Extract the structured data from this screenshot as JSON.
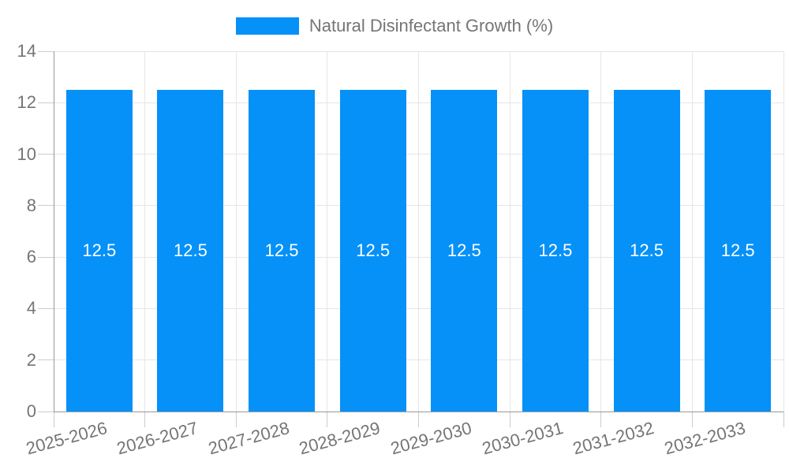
{
  "legend": {
    "label": "Natural Disinfectant Growth (%)"
  },
  "chart_data": {
    "type": "bar",
    "title": "",
    "xlabel": "",
    "ylabel": "",
    "categories": [
      "2025-2026",
      "2026-2027",
      "2027-2028",
      "2028-2029",
      "2029-2030",
      "2030-2031",
      "2031-2032",
      "2032-2033"
    ],
    "series": [
      {
        "name": "Natural Disinfectant Growth (%)",
        "values": [
          12.5,
          12.5,
          12.5,
          12.5,
          12.5,
          12.5,
          12.5,
          12.5
        ]
      }
    ],
    "bar_labels": [
      "12.5",
      "12.5",
      "12.5",
      "12.5",
      "12.5",
      "12.5",
      "12.5",
      "12.5"
    ],
    "ylim": [
      0,
      14
    ],
    "yticks": [
      0,
      2,
      4,
      6,
      8,
      10,
      12,
      14
    ],
    "grid": true,
    "legend_position": "top-center",
    "x_label_rotation_deg": -15,
    "colors": {
      "bar": "#0591F8",
      "bar_label_text": "#FFFFFF",
      "axis_text": "#757575",
      "grid_line": "#E6E6E6",
      "axis_line": "#999999",
      "tick_line": "#CCCCCC",
      "background": "#FFFFFF"
    }
  }
}
